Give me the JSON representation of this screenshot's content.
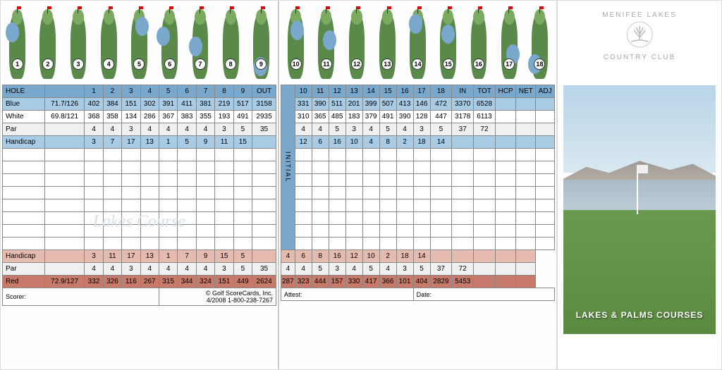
{
  "club_name": "MENIFEE LAKES",
  "club_sub": "COUNTRY CLUB",
  "cover_title": "LAKES & PALMS COURSES",
  "watermark": "Lakes Course",
  "copyright": "© Golf ScoreCards, Inc.",
  "copyright_sub": "4/2008   1-800-238-7267",
  "front": {
    "header": [
      "HOLE",
      "",
      "1",
      "2",
      "3",
      "4",
      "5",
      "6",
      "7",
      "8",
      "9",
      "OUT"
    ],
    "blue": [
      "Blue",
      "71.7/126",
      "402",
      "384",
      "151",
      "302",
      "391",
      "411",
      "381",
      "219",
      "517",
      "3158"
    ],
    "white": [
      "White",
      "69.8/121",
      "368",
      "358",
      "134",
      "286",
      "367",
      "383",
      "355",
      "193",
      "491",
      "2935"
    ],
    "par": [
      "Par",
      "",
      "4",
      "4",
      "3",
      "4",
      "4",
      "4",
      "4",
      "3",
      "5",
      "35"
    ],
    "hcp": [
      "Handicap",
      "",
      "3",
      "7",
      "17",
      "13",
      "1",
      "5",
      "9",
      "11",
      "15",
      ""
    ],
    "hcp2": [
      "Handicap",
      "",
      "3",
      "11",
      "17",
      "13",
      "1",
      "7",
      "9",
      "15",
      "5",
      ""
    ],
    "par2": [
      "Par",
      "",
      "4",
      "4",
      "3",
      "4",
      "4",
      "4",
      "4",
      "3",
      "5",
      "35"
    ],
    "red": [
      "Red",
      "72.9/127",
      "332",
      "326",
      "116",
      "267",
      "315",
      "344",
      "324",
      "151",
      "449",
      "2624"
    ],
    "scorer": "Scorer:"
  },
  "back": {
    "header": [
      "10",
      "11",
      "12",
      "13",
      "14",
      "15",
      "16",
      "17",
      "18",
      "IN",
      "TOT",
      "HCP",
      "NET",
      "ADJ"
    ],
    "blue": [
      "331",
      "390",
      "511",
      "201",
      "399",
      "507",
      "413",
      "146",
      "472",
      "3370",
      "6528",
      "",
      "",
      ""
    ],
    "white": [
      "310",
      "365",
      "485",
      "183",
      "379",
      "491",
      "390",
      "128",
      "447",
      "3178",
      "6113",
      "",
      "",
      ""
    ],
    "par": [
      "4",
      "4",
      "5",
      "3",
      "4",
      "5",
      "4",
      "3",
      "5",
      "37",
      "72",
      "",
      "",
      ""
    ],
    "hcp": [
      "12",
      "6",
      "16",
      "10",
      "4",
      "8",
      "2",
      "18",
      "14",
      "",
      "",
      "",
      "",
      ""
    ],
    "hcp2": [
      "4",
      "6",
      "8",
      "16",
      "12",
      "10",
      "2",
      "18",
      "14",
      "",
      "",
      "",
      "",
      ""
    ],
    "par2": [
      "4",
      "4",
      "5",
      "3",
      "4",
      "5",
      "4",
      "3",
      "5",
      "37",
      "72",
      "",
      "",
      ""
    ],
    "red": [
      "287",
      "323",
      "444",
      "157",
      "330",
      "417",
      "366",
      "101",
      "404",
      "2829",
      "5453",
      "",
      "",
      ""
    ],
    "attest": "Attest:",
    "date": "Date:"
  },
  "initial_label": "INITIAL",
  "holes_front": [
    1,
    2,
    3,
    4,
    5,
    6,
    7,
    8,
    9
  ],
  "holes_back": [
    10,
    11,
    12,
    13,
    14,
    15,
    16,
    17,
    18
  ],
  "colors": {
    "blue_header": "#5a8ab5",
    "blue_row": "#7aa8cc",
    "blue_light": "#a8cce5",
    "red_row": "#c77a6a",
    "red_light": "#e5bbb0",
    "fairway": "#5a8a4a",
    "green": "#7aab60",
    "water": "#7aa8cc"
  }
}
